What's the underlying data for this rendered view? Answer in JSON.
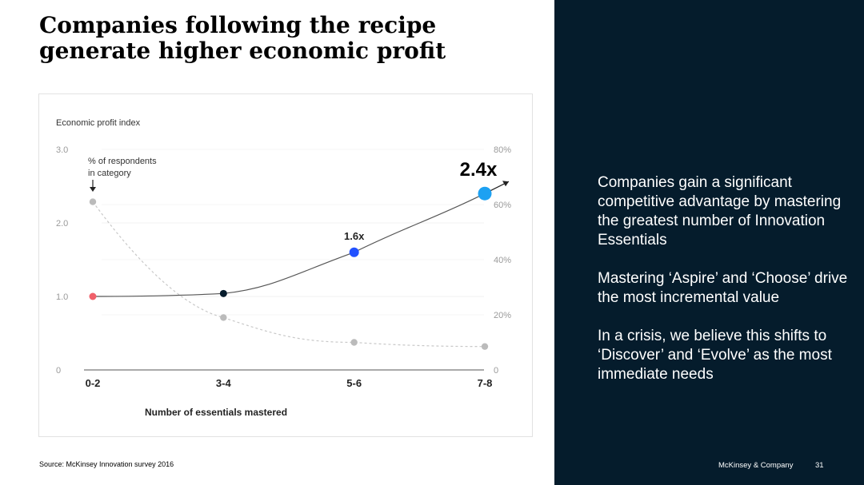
{
  "slide": {
    "title": "Companies following the recipe generate higher economic profit",
    "source": "Source: McKinsey Innovation survey 2016",
    "brand": "McKinsey & Company",
    "page_number": "31"
  },
  "panel": {
    "paragraphs": [
      "Companies gain a significant competitive advantage by mastering the greatest number of Innovation Essentials",
      "Mastering ‘Aspire’ and ‘Choose’ drive the most incremental value",
      "In a crisis, we believe this shifts to ‘Discover’ and ‘Evolve’ as the most immediate needs"
    ],
    "background": "#051c2c"
  },
  "chart_data": {
    "type": "line",
    "ylabel": "Economic profit index",
    "xlabel": "Number of essentials mastered",
    "categories": [
      "0-2",
      "3-4",
      "5-6",
      "7-8"
    ],
    "ylim": [
      0,
      3.0
    ],
    "yticks": [
      "0",
      "1.0",
      "2.0",
      "3.0"
    ],
    "y2lim": [
      0,
      80
    ],
    "y2ticks": [
      "0",
      "20%",
      "40%",
      "60%",
      "80%"
    ],
    "series": [
      {
        "axis": "left",
        "values": [
          1.0,
          1.04,
          1.6,
          2.4
        ],
        "point_colors": [
          "#f0606a",
          "#051c2c",
          "#2251ff",
          "#1da1f2"
        ],
        "line_color": "#555555"
      },
      {
        "axis": "right",
        "values": [
          61,
          19,
          10,
          8.5
        ],
        "point_colors": [
          "#bbbbbb",
          "#bbbbbb",
          "#bbbbbb",
          "#bbbbbb"
        ],
        "line_color": "#c8c8c8",
        "dashed": true
      }
    ],
    "annotations": [
      {
        "text": "% of respondents in category",
        "lines": [
          "% of respondents",
          "in category"
        ]
      },
      {
        "text": "1.6x",
        "category": "5-6"
      },
      {
        "text": "2.4x",
        "category": "7-8"
      }
    ],
    "grid": true,
    "legend": "none"
  }
}
